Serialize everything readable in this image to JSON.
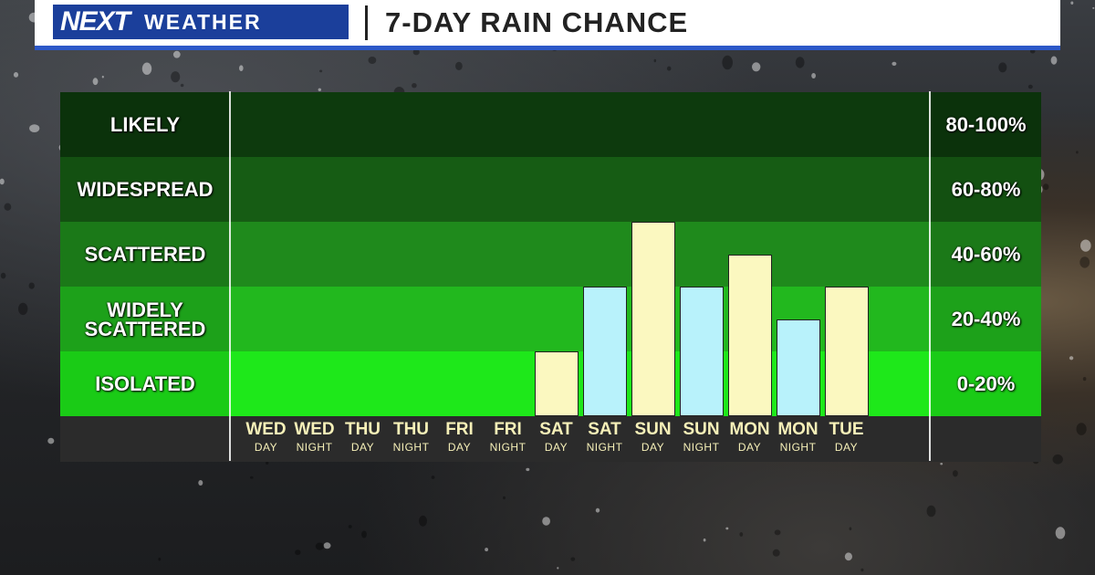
{
  "header": {
    "logo_next": "NEXT",
    "logo_weather": "WEATHER",
    "title": "7-DAY RAIN CHANCE"
  },
  "chart_data": {
    "type": "bar",
    "title": "7-DAY RAIN CHANCE",
    "ylim": [
      0,
      100
    ],
    "y_bands": [
      {
        "label": "LIKELY",
        "range": "80-100%",
        "color": "#0d3a0d"
      },
      {
        "label": "WIDESPREAD",
        "range": "60-80%",
        "color": "#165c14"
      },
      {
        "label": "SCATTERED",
        "range": "40-60%",
        "color": "#1f8a1c"
      },
      {
        "label": "WIDELY SCATTERED",
        "range": "20-40%",
        "color": "#22b81e"
      },
      {
        "label": "ISOLATED",
        "range": "0-20%",
        "color": "#1ee81a"
      }
    ],
    "categories": [
      {
        "day": "WED",
        "part": "DAY"
      },
      {
        "day": "WED",
        "part": "NIGHT"
      },
      {
        "day": "THU",
        "part": "DAY"
      },
      {
        "day": "THU",
        "part": "NIGHT"
      },
      {
        "day": "FRI",
        "part": "DAY"
      },
      {
        "day": "FRI",
        "part": "NIGHT"
      },
      {
        "day": "SAT",
        "part": "DAY"
      },
      {
        "day": "SAT",
        "part": "NIGHT"
      },
      {
        "day": "SUN",
        "part": "DAY"
      },
      {
        "day": "SUN",
        "part": "NIGHT"
      },
      {
        "day": "MON",
        "part": "DAY"
      },
      {
        "day": "MON",
        "part": "NIGHT"
      },
      {
        "day": "TUE",
        "part": "DAY"
      }
    ],
    "values": [
      0,
      0,
      0,
      0,
      0,
      0,
      20,
      40,
      60,
      40,
      50,
      30,
      40
    ],
    "day_color": "#fbf8c0",
    "night_color": "#b8f2fb"
  }
}
